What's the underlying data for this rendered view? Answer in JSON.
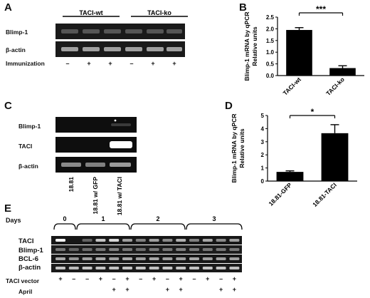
{
  "panels": {
    "A": {
      "letter": "A",
      "groups": [
        "TACI-wt",
        "TACI-ko"
      ],
      "rows": [
        "Blimp-1",
        "β-actin"
      ],
      "immunization_label": "Immunization",
      "immunization_signs": [
        "–",
        "+",
        "+",
        "–",
        "+",
        "+"
      ]
    },
    "B": {
      "letter": "B"
    },
    "C": {
      "letter": "C",
      "rows": [
        "Blimp-1",
        "TACI",
        "β-actin"
      ],
      "lanes": [
        "18.81",
        "18.81 w/ GFP",
        "18.81 w/ TACI"
      ]
    },
    "D": {
      "letter": "D"
    },
    "E": {
      "letter": "E",
      "days_label": "Days",
      "day_labels": [
        "0",
        "1",
        "2",
        "3"
      ],
      "rows": [
        "TACI",
        "Blimp-1",
        "BCL-6",
        "β-actin"
      ],
      "vector_label": "TACI vector",
      "april_label": "April",
      "vector_signs": [
        "+",
        "–",
        "–",
        "+",
        "–",
        "+",
        "–",
        "+",
        "–",
        "+",
        "–",
        "+",
        "–",
        "+"
      ],
      "april_signs": [
        "",
        "",
        "",
        "",
        "+",
        "+",
        "",
        "",
        "+",
        "+",
        "",
        "",
        "+",
        "+"
      ]
    }
  },
  "chart_data": [
    {
      "type": "bar",
      "categories": [
        "TACI-wt",
        "TACI-ko"
      ],
      "values": [
        1.95,
        0.32
      ],
      "errors": [
        0.1,
        0.1
      ],
      "ylabel": "Blimp-1 mRNA by qPCR\nRelative units",
      "ylim": [
        0,
        2.5
      ],
      "yticks": [
        "0.0",
        "0.5",
        "1.0",
        "1.5",
        "2.0",
        "2.5"
      ],
      "significance": "***",
      "grid": false
    },
    {
      "type": "bar",
      "categories": [
        "18.81-GFP",
        "18.81-TACI"
      ],
      "values": [
        0.7,
        3.65
      ],
      "errors": [
        0.08,
        0.65
      ],
      "ylabel": "Blimp-1 mRNA by qPCR\nRelative units",
      "ylim": [
        0,
        5
      ],
      "yticks": [
        "0",
        "1",
        "2",
        "3",
        "4",
        "5"
      ],
      "significance": "*",
      "grid": false
    }
  ]
}
